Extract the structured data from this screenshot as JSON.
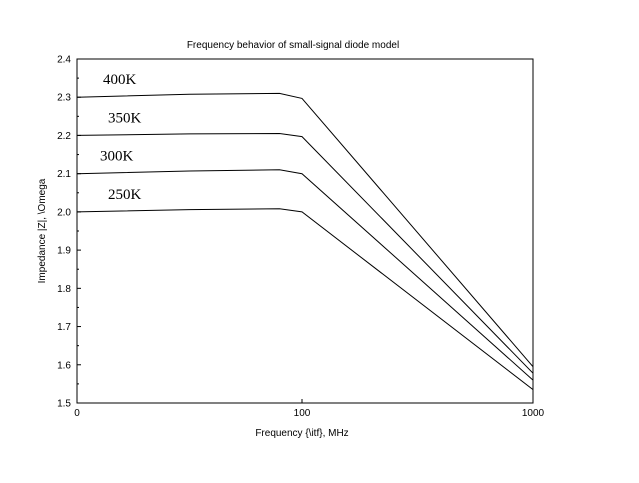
{
  "chart_data": {
    "type": "line",
    "title": "Frequency behavior of small-signal diode model",
    "xlabel": "Frequency {\\itf}, MHz",
    "ylabel": "Impedance |Z|, \\Omega",
    "xlim": [
      0,
      1000
    ],
    "ylim": [
      1.5,
      2.4
    ],
    "x_scale": "piecewise",
    "x_ticks": [
      0,
      100,
      1000
    ],
    "x_tick_labels": [
      "0",
      "100",
      "1000"
    ],
    "y_ticks": [
      1.5,
      1.6,
      1.7,
      1.8,
      1.9,
      2.0,
      2.1,
      2.2,
      2.3,
      2.4
    ],
    "y_tick_labels": [
      "1.5",
      "1.6",
      "1.7",
      "1.8",
      "1.9",
      "2.0",
      "2.1",
      "2.2",
      "2.3",
      "2.4"
    ],
    "grid": false,
    "legend": "none",
    "line_color": "#000000",
    "series": [
      {
        "name": "400K",
        "x": [
          0,
          50,
          90,
          100,
          1000
        ],
        "y": [
          2.3,
          2.308,
          2.31,
          2.297,
          1.595
        ]
      },
      {
        "name": "350K",
        "x": [
          0,
          50,
          90,
          100,
          1000
        ],
        "y": [
          2.2,
          2.204,
          2.205,
          2.197,
          1.578
        ]
      },
      {
        "name": "300K",
        "x": [
          0,
          50,
          90,
          100,
          1000
        ],
        "y": [
          2.1,
          2.107,
          2.11,
          2.1,
          1.56
        ]
      },
      {
        "name": "250K",
        "x": [
          0,
          50,
          90,
          100,
          1000
        ],
        "y": [
          2.0,
          2.006,
          2.008,
          2.0,
          1.535
        ]
      }
    ]
  }
}
